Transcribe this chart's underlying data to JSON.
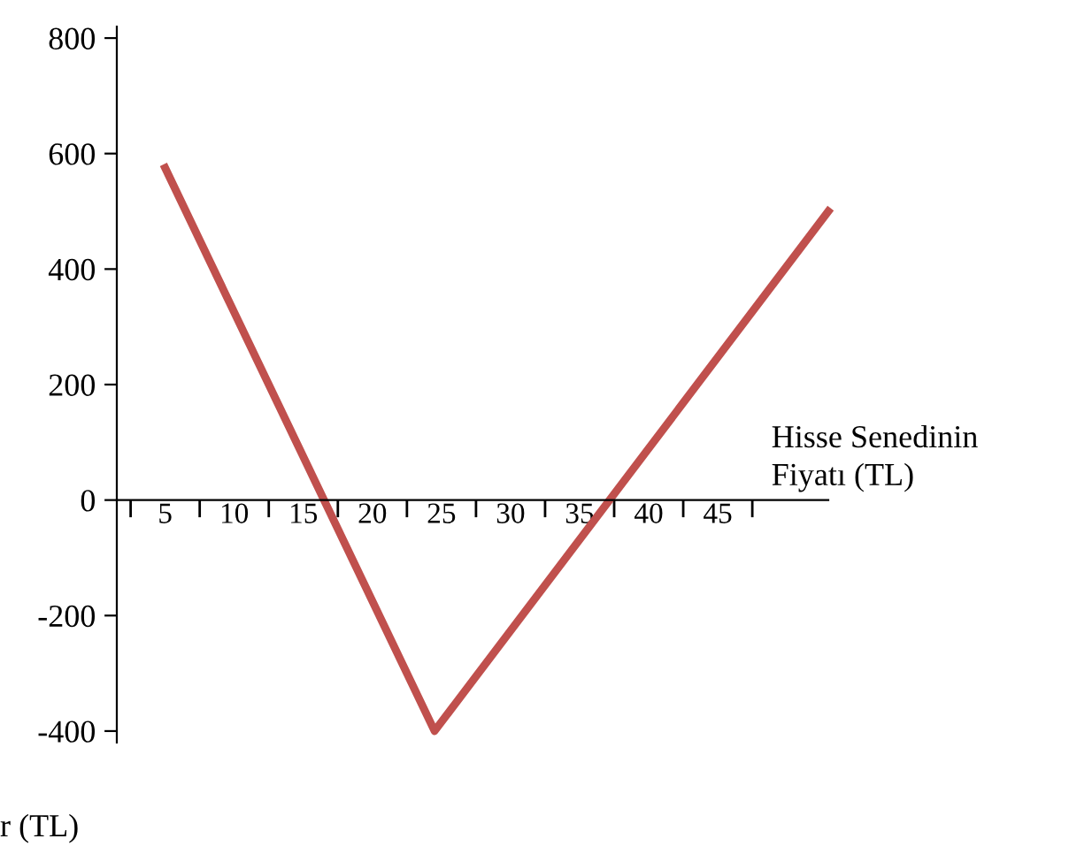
{
  "chart_data": {
    "type": "line",
    "xlabel": "Hisse Senedinin\nFiyatı (TL)",
    "ylabel": "r (TL)",
    "x": [
      5,
      24.5,
      53
    ],
    "series": [
      {
        "color": "#c0504d",
        "values": [
          575,
          -400,
          500
        ]
      }
    ],
    "xlim": [
      1.5,
      53
    ],
    "ylim": [
      -420,
      820
    ],
    "xticks": [
      5,
      10,
      15,
      20,
      25,
      30,
      35,
      40,
      45,
      {
        "value": 2.5,
        "label": null
      },
      {
        "value": 7.5,
        "label": null
      },
      {
        "value": 12.5,
        "label": null
      },
      {
        "value": 17.5,
        "label": null
      },
      {
        "value": 22.5,
        "label": null
      },
      {
        "value": 27.5,
        "label": null
      },
      {
        "value": 32.5,
        "label": null
      },
      {
        "value": 37.5,
        "label": null
      },
      {
        "value": 42.5,
        "label": null
      },
      {
        "value": 47.5,
        "label": null
      }
    ],
    "yticks": [
      -400,
      -200,
      0,
      200,
      400,
      600,
      800
    ],
    "grid": false,
    "legend": false,
    "marker": "none",
    "line_style": "solid"
  }
}
